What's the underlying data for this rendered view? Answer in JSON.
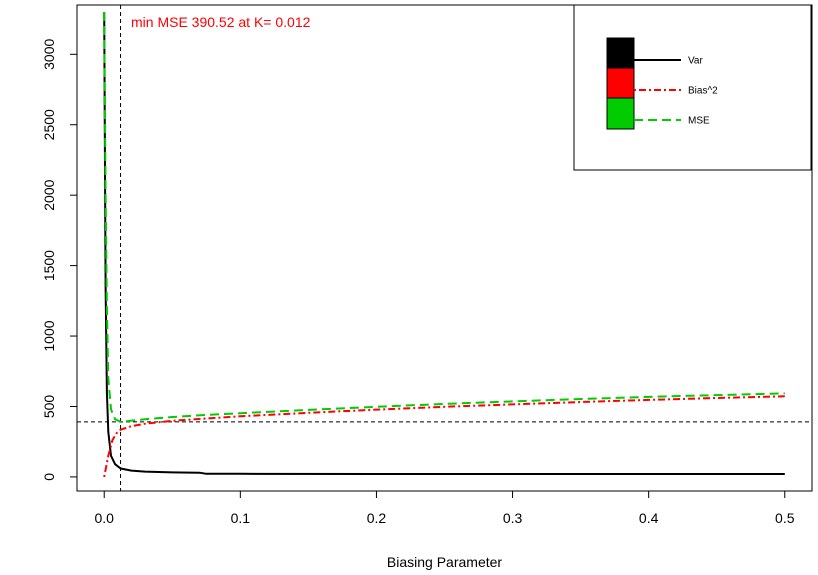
{
  "chart_data": {
    "type": "line",
    "title": "",
    "xlabel": "Biasing Parameter",
    "ylabel": "",
    "xlim": [
      -0.02,
      0.52
    ],
    "ylim": [
      -100,
      3350
    ],
    "x_ticks": [
      0.0,
      0.1,
      0.2,
      0.3,
      0.4,
      0.5
    ],
    "x_tick_labels": [
      "0.0",
      "0.1",
      "0.2",
      "0.3",
      "0.4",
      "0.5"
    ],
    "y_ticks": [
      0,
      500,
      1000,
      1500,
      2000,
      2500,
      3000
    ],
    "y_tick_labels": [
      "0",
      "500",
      "1000",
      "1500",
      "2000",
      "2500",
      "3000"
    ],
    "grid": false,
    "legend_position": "top-right",
    "annotation": {
      "text": "min MSE 390.52 at K= 0.012",
      "color": "#ff0000"
    },
    "reference_lines": {
      "vertical_x": 0.012,
      "horizontal_y": 390.52
    },
    "series": [
      {
        "name": "Var",
        "color": "#000000",
        "style": "solid",
        "x": [
          0.0,
          0.001,
          0.002,
          0.003,
          0.005,
          0.008,
          0.012,
          0.02,
          0.03,
          0.05,
          0.07,
          0.075,
          0.1,
          0.2,
          0.3,
          0.4,
          0.5
        ],
        "y": [
          3300,
          1350,
          600,
          320,
          150,
          90,
          60,
          45,
          38,
          32,
          30,
          22,
          22,
          21,
          21,
          21,
          21
        ]
      },
      {
        "name": "Bias^2",
        "color": "#ff0000",
        "style": "dotdash",
        "x": [
          0.0,
          0.003,
          0.006,
          0.009,
          0.012,
          0.02,
          0.03,
          0.05,
          0.075,
          0.1,
          0.15,
          0.2,
          0.25,
          0.3,
          0.35,
          0.4,
          0.45,
          0.5
        ],
        "y": [
          0,
          150,
          260,
          310,
          335,
          360,
          378,
          398,
          415,
          430,
          455,
          478,
          498,
          515,
          532,
          547,
          560,
          572
        ]
      },
      {
        "name": "MSE",
        "color": "#00cc00",
        "style": "dashed",
        "x": [
          0.0,
          0.001,
          0.002,
          0.003,
          0.005,
          0.008,
          0.012,
          0.02,
          0.03,
          0.05,
          0.075,
          0.1,
          0.15,
          0.2,
          0.25,
          0.3,
          0.35,
          0.4,
          0.45,
          0.5
        ],
        "y": [
          3300,
          2000,
          1200,
          700,
          480,
          410,
          390.52,
          400,
          410,
          425,
          440,
          452,
          476,
          498,
          518,
          536,
          553,
          568,
          581,
          593
        ]
      }
    ]
  }
}
